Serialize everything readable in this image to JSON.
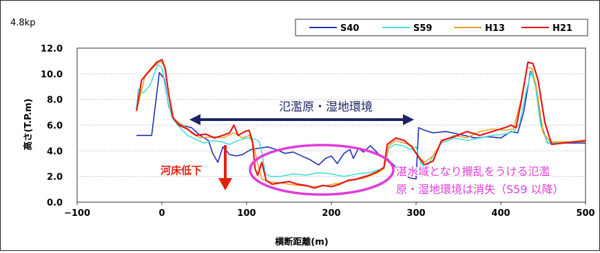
{
  "chart_data": {
    "type": "line",
    "station_label": "4.8kp",
    "xlabel": "横断距離(m)",
    "ylabel": "高さ(T.P.m)",
    "xlim": [
      -100,
      500
    ],
    "ylim": [
      0,
      12
    ],
    "x_ticks": [
      -100,
      0,
      100,
      200,
      300,
      400,
      500
    ],
    "y_ticks": [
      0,
      2,
      4,
      6,
      8,
      10,
      12
    ],
    "x_tick_labels": [
      "−100",
      "0",
      "100",
      "200",
      "300",
      "400",
      "500"
    ],
    "y_tick_labels": [
      "0.0",
      "2.0",
      "4.0",
      "6.0",
      "8.0",
      "10.0",
      "12.0"
    ],
    "grid": "horizontal",
    "legend_position": "top-right",
    "series": [
      {
        "name": "S40",
        "color": "#1f2fb8",
        "points": [
          [
            -30,
            5.2
          ],
          [
            -12,
            5.2
          ],
          [
            -3,
            10.1
          ],
          [
            3,
            9.6
          ],
          [
            8,
            7.5
          ],
          [
            14,
            6.4
          ],
          [
            22,
            6.0
          ],
          [
            35,
            5.8
          ],
          [
            45,
            5.2
          ],
          [
            55,
            4.8
          ],
          [
            60,
            3.8
          ],
          [
            66,
            3.1
          ],
          [
            72,
            4.3
          ],
          [
            80,
            3.7
          ],
          [
            88,
            3.6
          ],
          [
            95,
            3.7
          ],
          [
            105,
            4.1
          ],
          [
            115,
            4.2
          ],
          [
            125,
            4.3
          ],
          [
            135,
            4.1
          ],
          [
            145,
            3.8
          ],
          [
            155,
            3.9
          ],
          [
            165,
            3.6
          ],
          [
            175,
            3.3
          ],
          [
            185,
            2.9
          ],
          [
            193,
            3.4
          ],
          [
            200,
            3.6
          ],
          [
            207,
            3.0
          ],
          [
            215,
            3.8
          ],
          [
            222,
            4.1
          ],
          [
            226,
            3.4
          ],
          [
            232,
            4.2
          ],
          [
            238,
            3.9
          ],
          [
            246,
            4.4
          ],
          [
            252,
            4.0
          ],
          [
            258,
            3.6
          ],
          [
            266,
            3.4
          ],
          [
            278,
            2.6
          ],
          [
            292,
            1.9
          ],
          [
            300,
            1.8
          ],
          [
            303,
            5.8
          ],
          [
            310,
            5.6
          ],
          [
            320,
            5.4
          ],
          [
            335,
            5.5
          ],
          [
            350,
            5.3
          ],
          [
            370,
            5.0
          ],
          [
            385,
            5.1
          ],
          [
            400,
            5.0
          ],
          [
            412,
            5.5
          ],
          [
            420,
            5.4
          ],
          [
            427,
            7.0
          ],
          [
            435,
            10.2
          ],
          [
            441,
            9.3
          ],
          [
            447,
            6.2
          ],
          [
            455,
            4.6
          ],
          [
            500,
            4.6
          ]
        ]
      },
      {
        "name": "S59",
        "color": "#3fe0dc",
        "points": [
          [
            -30,
            7.1
          ],
          [
            -28,
            8.8
          ],
          [
            -22,
            8.5
          ],
          [
            -14,
            9.1
          ],
          [
            -5,
            10.7
          ],
          [
            0,
            10.5
          ],
          [
            4,
            9.0
          ],
          [
            8,
            7.6
          ],
          [
            12,
            6.6
          ],
          [
            20,
            5.9
          ],
          [
            30,
            5.2
          ],
          [
            40,
            4.9
          ],
          [
            50,
            4.6
          ],
          [
            60,
            4.8
          ],
          [
            70,
            4.7
          ],
          [
            80,
            4.5
          ],
          [
            90,
            4.8
          ],
          [
            100,
            5.0
          ],
          [
            110,
            4.9
          ],
          [
            115,
            4.7
          ],
          [
            119,
            3.5
          ],
          [
            122,
            2.2
          ],
          [
            128,
            2.0
          ],
          [
            140,
            2.0
          ],
          [
            155,
            2.2
          ],
          [
            170,
            2.1
          ],
          [
            185,
            2.3
          ],
          [
            200,
            2.2
          ],
          [
            215,
            2.0
          ],
          [
            230,
            2.2
          ],
          [
            245,
            2.3
          ],
          [
            255,
            2.5
          ],
          [
            262,
            2.6
          ],
          [
            268,
            4.2
          ],
          [
            275,
            4.5
          ],
          [
            285,
            4.4
          ],
          [
            293,
            4.1
          ],
          [
            300,
            4.3
          ],
          [
            306,
            3.0
          ],
          [
            312,
            2.6
          ],
          [
            320,
            3.6
          ],
          [
            330,
            4.6
          ],
          [
            345,
            5.0
          ],
          [
            360,
            4.8
          ],
          [
            375,
            5.0
          ],
          [
            390,
            5.2
          ],
          [
            405,
            5.3
          ],
          [
            415,
            5.5
          ],
          [
            422,
            6.1
          ],
          [
            430,
            8.6
          ],
          [
            436,
            10.2
          ],
          [
            441,
            9.0
          ],
          [
            447,
            6.0
          ],
          [
            455,
            4.6
          ],
          [
            500,
            4.7
          ]
        ]
      },
      {
        "name": "H13",
        "color": "#f0a020",
        "points": [
          [
            -30,
            7.1
          ],
          [
            -20,
            9.8
          ],
          [
            -10,
            10.5
          ],
          [
            -2,
            11.0
          ],
          [
            3,
            10.6
          ],
          [
            8,
            8.5
          ],
          [
            14,
            6.5
          ],
          [
            25,
            6.0
          ],
          [
            35,
            5.4
          ],
          [
            45,
            5.0
          ],
          [
            60,
            5.1
          ],
          [
            72,
            5.0
          ],
          [
            85,
            5.4
          ],
          [
            95,
            5.0
          ],
          [
            103,
            5.2
          ],
          [
            108,
            4.5
          ],
          [
            112,
            3.3
          ],
          [
            118,
            1.8
          ],
          [
            125,
            1.6
          ],
          [
            140,
            1.5
          ],
          [
            160,
            1.3
          ],
          [
            180,
            1.2
          ],
          [
            195,
            1.3
          ],
          [
            210,
            1.5
          ],
          [
            225,
            1.7
          ],
          [
            240,
            1.9
          ],
          [
            255,
            2.3
          ],
          [
            262,
            2.6
          ],
          [
            268,
            4.4
          ],
          [
            276,
            4.8
          ],
          [
            286,
            4.6
          ],
          [
            295,
            4.4
          ],
          [
            302,
            3.6
          ],
          [
            310,
            3.1
          ],
          [
            320,
            3.6
          ],
          [
            330,
            4.7
          ],
          [
            345,
            5.2
          ],
          [
            360,
            5.0
          ],
          [
            375,
            5.5
          ],
          [
            390,
            5.7
          ],
          [
            405,
            5.6
          ],
          [
            415,
            5.7
          ],
          [
            424,
            8.0
          ],
          [
            431,
            10.5
          ],
          [
            437,
            10.4
          ],
          [
            443,
            8.6
          ],
          [
            450,
            5.4
          ],
          [
            458,
            4.7
          ],
          [
            500,
            4.7
          ]
        ]
      },
      {
        "name": "H21",
        "color": "#e01818",
        "points": [
          [
            -30,
            7.1
          ],
          [
            -24,
            9.5
          ],
          [
            -14,
            10.3
          ],
          [
            -6,
            10.9
          ],
          [
            0,
            11.1
          ],
          [
            4,
            10.4
          ],
          [
            8,
            8.4
          ],
          [
            13,
            6.6
          ],
          [
            20,
            6.0
          ],
          [
            30,
            5.7
          ],
          [
            40,
            5.2
          ],
          [
            52,
            5.3
          ],
          [
            62,
            5.0
          ],
          [
            72,
            5.2
          ],
          [
            80,
            5.4
          ],
          [
            85,
            6.0
          ],
          [
            90,
            5.2
          ],
          [
            98,
            5.5
          ],
          [
            103,
            5.6
          ],
          [
            107,
            4.7
          ],
          [
            110,
            2.6
          ],
          [
            113,
            2.1
          ],
          [
            118,
            3.1
          ],
          [
            123,
            1.7
          ],
          [
            130,
            1.4
          ],
          [
            140,
            1.5
          ],
          [
            150,
            1.6
          ],
          [
            160,
            1.4
          ],
          [
            170,
            1.3
          ],
          [
            180,
            1.1
          ],
          [
            190,
            1.3
          ],
          [
            200,
            1.2
          ],
          [
            210,
            1.4
          ],
          [
            220,
            1.7
          ],
          [
            230,
            1.8
          ],
          [
            245,
            2.1
          ],
          [
            255,
            2.4
          ],
          [
            262,
            2.7
          ],
          [
            266,
            4.5
          ],
          [
            276,
            5.0
          ],
          [
            286,
            4.8
          ],
          [
            295,
            4.3
          ],
          [
            303,
            3.5
          ],
          [
            310,
            2.9
          ],
          [
            320,
            3.2
          ],
          [
            330,
            4.8
          ],
          [
            345,
            5.1
          ],
          [
            360,
            5.5
          ],
          [
            375,
            5.2
          ],
          [
            390,
            5.5
          ],
          [
            405,
            5.8
          ],
          [
            412,
            6.0
          ],
          [
            418,
            5.8
          ],
          [
            424,
            7.8
          ],
          [
            432,
            10.9
          ],
          [
            438,
            10.8
          ],
          [
            444,
            9.5
          ],
          [
            452,
            6.2
          ],
          [
            460,
            4.5
          ],
          [
            500,
            4.8
          ]
        ]
      }
    ],
    "annotations": {
      "floodplain": "氾濫原・湿地環境",
      "riverbed": "河床低下",
      "loss_line1": "湛水域となり攪乱をうける氾濫",
      "loss_line2": "原・湿地環境は消失（S59 以降）"
    },
    "colors": {
      "floodplain_arrow": "#1a2466",
      "riverbed_arrow": "#e02010",
      "ellipse": "#e03cd8",
      "loss_text": "#e03cd8"
    }
  }
}
